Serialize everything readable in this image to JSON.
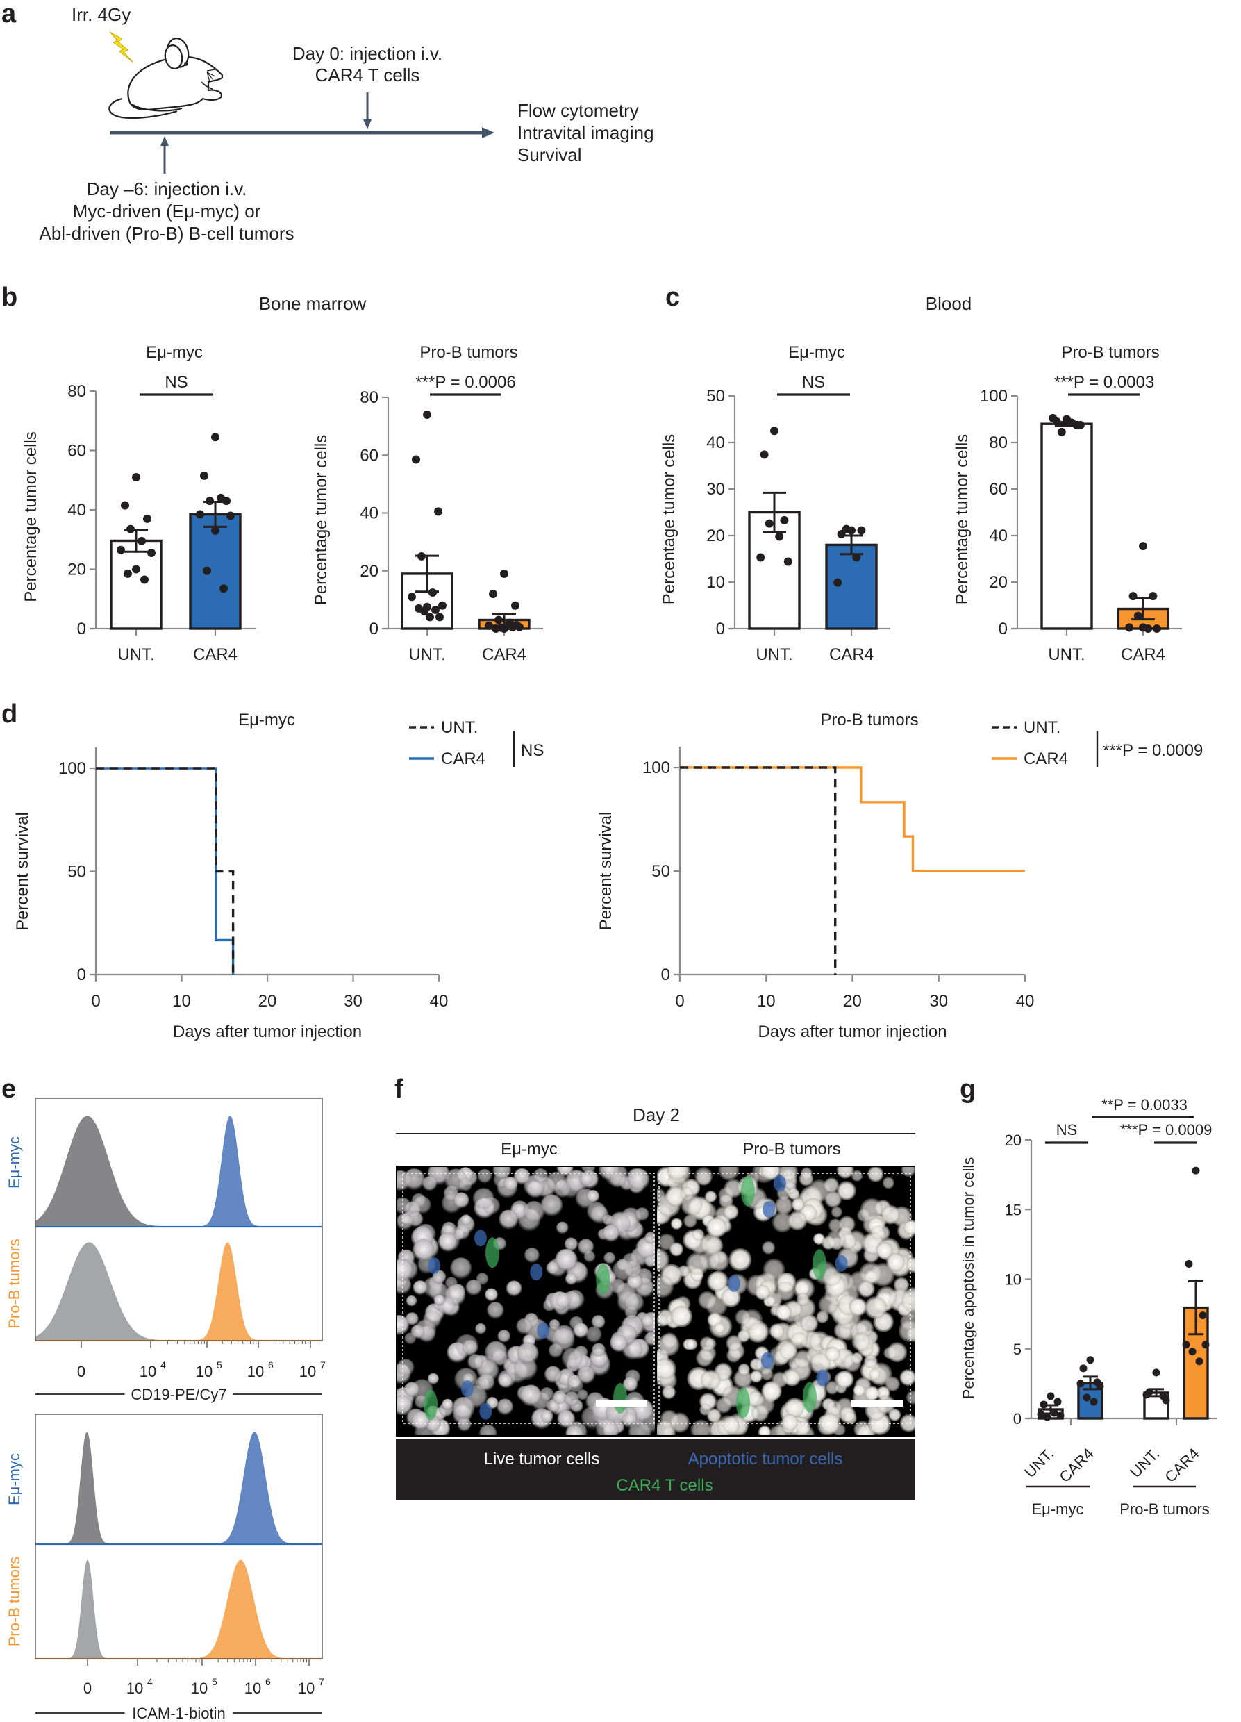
{
  "colors": {
    "ink": "#231f20",
    "blue": "#2b6cb2",
    "blue_hist": "#5b82c1",
    "orange": "#f7952e",
    "orange_hist": "#f7a755",
    "grey_dark": "#7f8083",
    "grey_light": "#a0a1a4",
    "timeline": "#44546a",
    "bolt": "#f7e21b",
    "legend_live": "#ffffff",
    "legend_apoptotic": "#3a67b3",
    "legend_car4": "#3fad5a"
  },
  "panel_a": {
    "letter": "a",
    "irradiation": "Irr. 4Gy",
    "day0_line1": "Day 0: injection i.v.",
    "day0_line2": "CAR4 T cells",
    "dayminus6_line1": "Day –6: injection i.v.",
    "dayminus6_line2": "Myc-driven (Eμ-myc) or",
    "dayminus6_line3": "Abl-driven (Pro-B) B-cell tumors",
    "readouts": [
      "Flow cytometry",
      "Intravital imaging",
      "Survival"
    ],
    "icons": [
      "mouse-icon",
      "lightning-bolt-icon"
    ]
  },
  "panel_b": {
    "letter": "b",
    "title": "Bone marrow"
  },
  "panel_c": {
    "letter": "c",
    "title": "Blood"
  },
  "panel_d": {
    "letter": "d"
  },
  "panel_e": {
    "letter": "e"
  },
  "panel_f": {
    "letter": "f",
    "timepoint": "Day 2",
    "col_left": "Eμ-myc",
    "col_right": "Pro-B tumors",
    "legend_live": "Live tumor cells",
    "legend_apoptotic": "Apoptotic tumor cells",
    "legend_car4": "CAR4 T cells"
  },
  "panel_g": {
    "letter": "g"
  },
  "chart_data": [
    {
      "id": "b-emu",
      "panel": "b",
      "type": "bar",
      "title": "Eμ-myc",
      "ylabel": "Percentage tumor cells",
      "xlabel": "",
      "categories": [
        "UNT.",
        "CAR4"
      ],
      "fills": [
        "#ffffff",
        "#2b6cb2"
      ],
      "ylim": [
        0,
        80
      ],
      "yticks": [
        0,
        20,
        40,
        60,
        80
      ],
      "means": [
        29.6,
        38.5
      ],
      "sem": [
        3.7,
        4.2
      ],
      "points": [
        [
          51,
          41.5,
          37,
          33.5,
          29.5,
          26.5,
          25.5,
          20,
          18.5,
          16.5
        ],
        [
          64.5,
          51.5,
          43,
          43,
          44,
          38.5,
          38,
          33,
          19.5,
          13.5
        ]
      ],
      "significance": [
        {
          "from": 0,
          "to": 1,
          "label": "NS"
        }
      ]
    },
    {
      "id": "b-prob",
      "panel": "b",
      "type": "bar",
      "title": "Pro-B tumors",
      "ylabel": "Percentage tumor cells",
      "xlabel": "",
      "categories": [
        "UNT.",
        "CAR4"
      ],
      "fills": [
        "#ffffff",
        "#f7952e"
      ],
      "ylim": [
        0,
        80
      ],
      "yticks": [
        0,
        20,
        40,
        60,
        80
      ],
      "means": [
        19,
        3
      ],
      "sem": [
        6.2,
        2
      ],
      "points": [
        [
          74,
          58.5,
          40.5,
          25,
          12.5,
          11,
          8,
          7.5,
          7,
          6.5,
          6,
          4,
          4
        ],
        [
          19,
          12,
          8,
          3,
          2,
          1,
          0.5,
          0,
          0,
          0.5,
          0.3,
          0.8,
          1.2
        ]
      ],
      "significance": [
        {
          "from": 0,
          "to": 1,
          "label": "***P = 0.0006"
        }
      ]
    },
    {
      "id": "c-emu",
      "panel": "c",
      "type": "bar",
      "title": "Eμ-myc",
      "ylabel": "Percentage tumor cells",
      "xlabel": "",
      "categories": [
        "UNT.",
        "CAR4"
      ],
      "fills": [
        "#ffffff",
        "#2b6cb2"
      ],
      "ylim": [
        0,
        50
      ],
      "yticks": [
        0,
        10,
        20,
        30,
        40,
        50
      ],
      "means": [
        25,
        18
      ],
      "sem": [
        4.2,
        2
      ],
      "points": [
        [
          42.5,
          37.4,
          23.3,
          22.6,
          19.8,
          15.3,
          14.4
        ],
        [
          21.1,
          20.3,
          21.1,
          21.4,
          15.3,
          9.9
        ]
      ],
      "significance": [
        {
          "from": 0,
          "to": 1,
          "label": "NS"
        }
      ]
    },
    {
      "id": "c-prob",
      "panel": "c",
      "type": "bar",
      "title": "Pro-B tumors",
      "ylabel": "Percentage tumor cells",
      "xlabel": "",
      "categories": [
        "UNT.",
        "CAR4"
      ],
      "fills": [
        "#ffffff",
        "#f7952e"
      ],
      "ylim": [
        0,
        100
      ],
      "yticks": [
        0,
        20,
        40,
        60,
        80,
        100
      ],
      "means": [
        88,
        8.5
      ],
      "sem": [
        0.8,
        4.5
      ],
      "points": [
        [
          90,
          89,
          87.5,
          84.5,
          88.5,
          90.5,
          87.5
        ],
        [
          35.5,
          14,
          14,
          5.5,
          0,
          0.5,
          0,
          0.5
        ]
      ],
      "significance": [
        {
          "from": 0,
          "to": 1,
          "label": "***P = 0.0003"
        }
      ]
    },
    {
      "id": "d-emu",
      "panel": "d",
      "type": "line",
      "step": true,
      "title": "Eμ-myc",
      "xlabel": "Days after tumor injection",
      "ylabel": "Percent survival",
      "xlim": [
        0,
        40
      ],
      "ylim": [
        0,
        100
      ],
      "xticks": [
        0,
        10,
        20,
        30,
        40
      ],
      "yticks": [
        0,
        50,
        100
      ],
      "series": [
        {
          "name": "UNT.",
          "color": "#231f20",
          "dashed": true,
          "x": [
            0,
            14,
            14,
            16,
            16
          ],
          "y": [
            100,
            100,
            50,
            50,
            0
          ]
        },
        {
          "name": "CAR4",
          "color": "#2b6cb2",
          "dashed": false,
          "x": [
            0,
            14,
            14,
            16,
            16
          ],
          "y": [
            100,
            100,
            16.7,
            16.7,
            0
          ]
        }
      ],
      "legend": "top-right",
      "annotation": "NS"
    },
    {
      "id": "d-prob",
      "panel": "d",
      "type": "line",
      "step": true,
      "title": "Pro-B tumors",
      "xlabel": "Days after tumor injection",
      "ylabel": "Percent survival",
      "xlim": [
        0,
        40
      ],
      "ylim": [
        0,
        100
      ],
      "xticks": [
        0,
        10,
        20,
        30,
        40
      ],
      "yticks": [
        0,
        50,
        100
      ],
      "series": [
        {
          "name": "UNT.",
          "color": "#231f20",
          "dashed": true,
          "x": [
            0,
            18,
            18
          ],
          "y": [
            100,
            100,
            0
          ]
        },
        {
          "name": "CAR4",
          "color": "#f7952e",
          "dashed": false,
          "x": [
            0,
            21,
            21,
            26,
            26,
            27,
            27,
            40
          ],
          "y": [
            100,
            100,
            83.3,
            83.3,
            66.7,
            66.7,
            50,
            50
          ]
        }
      ],
      "legend": "top-right",
      "annotation": "***P = 0.0009"
    },
    {
      "id": "e-cd19",
      "panel": "e",
      "type": "area",
      "xlabel": "CD19-PE/Cy7",
      "rows": [
        "Eμ-myc",
        "Pro-B tumors"
      ],
      "row_colors": [
        "#2b6cb2",
        "#f7952e"
      ],
      "xticks": [
        "0",
        "10^4",
        "10^5",
        "10^6",
        "10^7"
      ],
      "xtick_decades": [
        0,
        4,
        5,
        6,
        7
      ],
      "peaks": [
        [
          {
            "name": "unstained",
            "color": "#7f8083",
            "center_decade": 0.35,
            "width_decade": 0.55,
            "height": 1.0
          },
          {
            "name": "Eμ-myc CD19",
            "color": "#5b82c1",
            "center_decade": 5.45,
            "width_decade": 0.16,
            "height": 1.0
          }
        ],
        [
          {
            "name": "unstained",
            "color": "#a0a1a4",
            "center_decade": 0.45,
            "width_decade": 0.55,
            "height": 1.0
          },
          {
            "name": "Pro-B CD19",
            "color": "#f7a755",
            "center_decade": 5.4,
            "width_decade": 0.17,
            "height": 1.0
          }
        ]
      ]
    },
    {
      "id": "e-icam",
      "panel": "e",
      "type": "area",
      "xlabel": "ICAM-1-biotin",
      "rows": [
        "Eμ-myc",
        "Pro-B tumors"
      ],
      "row_colors": [
        "#2b6cb2",
        "#f7952e"
      ],
      "xticks": [
        "0",
        "10^4",
        "10^5",
        "10^6",
        "10^7"
      ],
      "xtick_decades": [
        0,
        4,
        5,
        6,
        7
      ],
      "peaks": [
        [
          {
            "name": "unstained",
            "color": "#7f8083",
            "center_decade": -0.05,
            "width_decade": 0.22,
            "height": 1.0
          },
          {
            "name": "Eμ-myc ICAM-1",
            "color": "#5b82c1",
            "center_decade": 5.98,
            "width_decade": 0.2,
            "height": 1.0
          }
        ],
        [
          {
            "name": "unstained",
            "color": "#a0a1a4",
            "center_decade": 0.0,
            "width_decade": 0.2,
            "height": 1.0
          },
          {
            "name": "Pro-B ICAM-1",
            "color": "#f7a755",
            "center_decade": 5.72,
            "width_decade": 0.24,
            "height": 1.0
          }
        ]
      ]
    },
    {
      "id": "g-apoptosis",
      "panel": "g",
      "type": "bar",
      "ylabel": "Percentage apoptosis in tumor cells",
      "xlabel": "",
      "categories": [
        "UNT.",
        "CAR4",
        "UNT.",
        "CAR4"
      ],
      "groups": [
        {
          "label": "Eμ-myc",
          "members": [
            0,
            1
          ]
        },
        {
          "label": "Pro-B tumors",
          "members": [
            2,
            3
          ]
        }
      ],
      "fills": [
        "#ffffff",
        "#2b6cb2",
        "#ffffff",
        "#f7952e"
      ],
      "ylim": [
        0,
        20
      ],
      "yticks": [
        0,
        5,
        10,
        15,
        20
      ],
      "means": [
        0.65,
        2.55,
        1.85,
        7.95
      ],
      "sem": [
        0.3,
        0.45,
        0.25,
        1.9
      ],
      "points": [
        [
          1.6,
          1.0,
          1.2,
          0.3,
          0.2,
          0.1,
          0.4
        ],
        [
          4.2,
          3.6,
          2.6,
          2.5,
          2.3,
          1.5,
          1.2
        ],
        [
          3.3,
          1.9,
          1.6,
          1.7,
          1.3
        ],
        [
          17.8,
          11.1,
          7.4,
          5.3,
          5.3,
          4.8,
          4.1
        ]
      ],
      "significance": [
        {
          "from": 0,
          "to": 1,
          "label": "NS"
        },
        {
          "from": 1,
          "to": 3,
          "label": "**P = 0.0033"
        },
        {
          "from": 2,
          "to": 3,
          "label": "***P = 0.0009"
        }
      ]
    }
  ]
}
